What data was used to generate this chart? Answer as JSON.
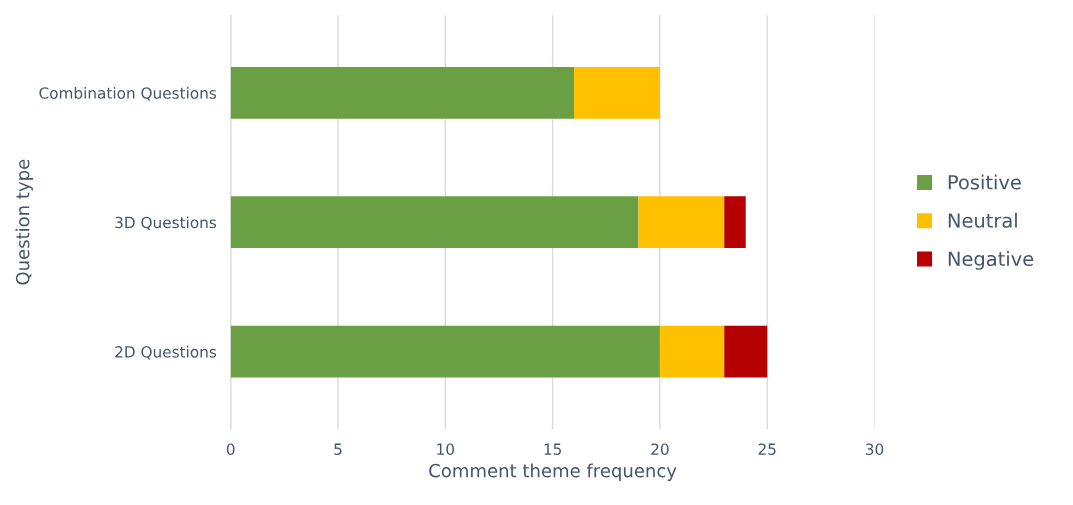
{
  "chart_data": {
    "type": "bar",
    "orientation": "horizontal",
    "stacked": true,
    "categories": [
      "Combination Questions",
      "3D Questions",
      "2D Questions"
    ],
    "series": [
      {
        "name": "Positive",
        "color": "#6aa043",
        "values": [
          16,
          19,
          20
        ]
      },
      {
        "name": "Neutral",
        "color": "#ffc000",
        "values": [
          4,
          4,
          3
        ]
      },
      {
        "name": "Negative",
        "color": "#b40000",
        "values": [
          null,
          1,
          2
        ]
      }
    ],
    "xlabel": "Comment theme frequency",
    "ylabel": "Question type",
    "xlim": [
      0,
      30
    ],
    "xticks": [
      0,
      5,
      10,
      15,
      20,
      25,
      30
    ],
    "grid": "x",
    "legend": "right"
  }
}
